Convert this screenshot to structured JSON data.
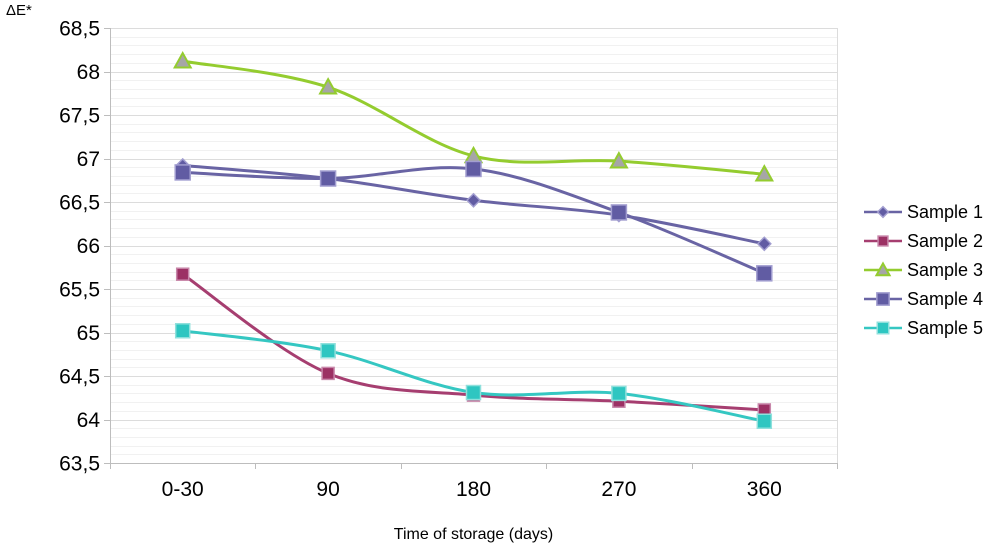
{
  "chart_data": {
    "type": "line",
    "title": "",
    "ylabel": "ΔE*",
    "xlabel": "Time of storage (days)",
    "categories": [
      "0-30",
      "90",
      "180",
      "270",
      "360"
    ],
    "y_tick_labels": [
      "68,5",
      "68",
      "67,5",
      "67",
      "66,5",
      "66",
      "65,5",
      "65",
      "64,5",
      "64",
      "63,5"
    ],
    "ylim": [
      63.5,
      68.5
    ],
    "y_major_step": 0.5,
    "y_minor_step": 0.1,
    "grid": "horizontal major+minor",
    "legend_position": "right",
    "smoothed_lines": true,
    "colors": {
      "axis": "#bdbdbd",
      "major_grid": "#dcdcdc",
      "minor_grid": "#f1f1f1",
      "text": "#000000"
    },
    "series": [
      {
        "name": "Sample 1",
        "marker": "diamond",
        "color": "#6964a4",
        "marker_fill": "#615ca3",
        "marker_stroke": "#a29ed0",
        "values": [
          66.92,
          66.77,
          66.52,
          66.35,
          66.02
        ]
      },
      {
        "name": "Sample 2",
        "marker": "square",
        "color": "#a63e70",
        "marker_fill": "#9c3164",
        "marker_stroke": "#c887aa",
        "values": [
          65.67,
          64.53,
          64.28,
          64.21,
          64.11
        ]
      },
      {
        "name": "Sample 3",
        "marker": "triangle",
        "color": "#94cc2f",
        "marker_fill": "#a6a6a6",
        "marker_stroke": "#94cc2f",
        "values": [
          68.12,
          67.82,
          67.03,
          66.97,
          66.82
        ]
      },
      {
        "name": "Sample 4",
        "marker": "square",
        "color": "#6964a4",
        "marker_fill": "#615ca3",
        "marker_stroke": "#a29ed0",
        "values": [
          66.84,
          66.77,
          66.88,
          66.38,
          65.68
        ]
      },
      {
        "name": "Sample 5",
        "marker": "square",
        "color": "#35c7c2",
        "marker_fill": "#2ec6c1",
        "marker_stroke": "#8fe0dc",
        "values": [
          65.02,
          64.79,
          64.31,
          64.3,
          63.98
        ]
      }
    ]
  }
}
